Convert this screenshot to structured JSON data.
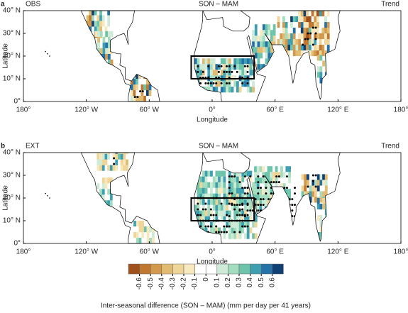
{
  "panels": [
    {
      "letter": "a",
      "label": "OBS",
      "title": "SON – MAM",
      "right": "Trend"
    },
    {
      "letter": "b",
      "label": "EXT",
      "title": "SON – MAM",
      "right": "Trend"
    }
  ],
  "axes": {
    "ylabel": "Latitude",
    "xlabel": "Longitude",
    "yticks": [
      "40° N",
      "30° N",
      "20° N",
      "10° N",
      "0°"
    ],
    "xticks": [
      "180°",
      "120° W",
      "60° W",
      "0°",
      "60° E",
      "120° E",
      "180°"
    ]
  },
  "colorbar": {
    "ticks": [
      -0.6,
      -0.5,
      -0.4,
      -0.3,
      -0.2,
      -0.1,
      0,
      0.1,
      0.2,
      0.3,
      0.4,
      0.5,
      0.6
    ],
    "colors": [
      "#a0521d",
      "#c0772f",
      "#d39a4e",
      "#e2bb73",
      "#efd597",
      "#f7e8bd",
      "#ffffff",
      "#ffffff",
      "#cdebd6",
      "#a4dcc0",
      "#6cc4aa",
      "#3e9fb0",
      "#2472a8",
      "#0f3f73"
    ],
    "title": "Inter-seasonal difference (SON – MAM) (mm per day per 41 years)"
  }
}
